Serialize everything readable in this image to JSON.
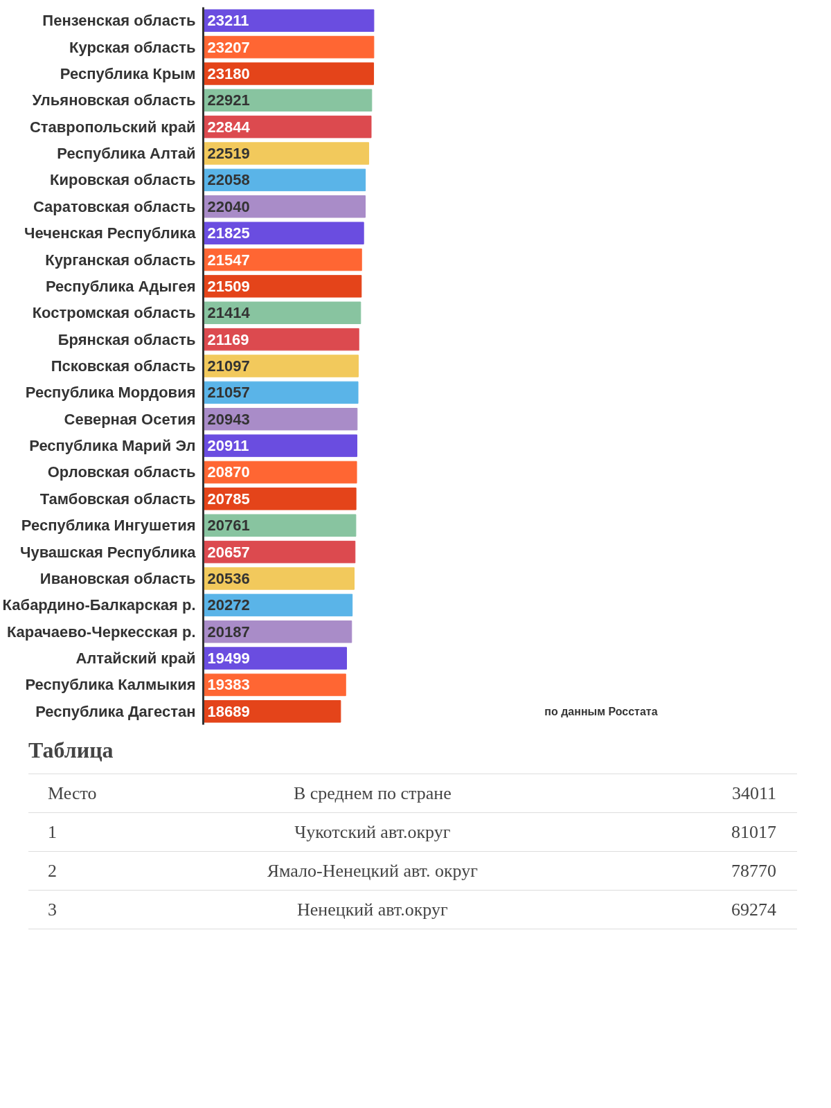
{
  "chart_data": {
    "type": "bar",
    "orientation": "horizontal",
    "data_labels": true,
    "tick_labels": "y",
    "categories": [
      "Пензенская область",
      "Курская область",
      "Республика Крым",
      "Ульяновская область",
      "Ставропольский край",
      "Республика Алтай",
      "Кировская область",
      "Саратовская область",
      "Чеченская Республика",
      "Курганская область",
      "Республика Адыгея",
      "Костромская область",
      "Брянская область",
      "Псковская область",
      "Республика Мордовия",
      "Северная Осетия",
      "Республика Марий Эл",
      "Орловская область",
      "Тамбовская область",
      "Республика Ингушетия",
      "Чувашская Республика",
      "Ивановская область",
      "Кабардино-Балкарская р.",
      "Карачаево-Черкесская р.",
      "Алтайский край",
      "Республика Калмыкия",
      "Республика Дагестан"
    ],
    "values": [
      23211,
      23207,
      23180,
      22921,
      22844,
      22519,
      22058,
      22040,
      21825,
      21547,
      21509,
      21414,
      21169,
      21097,
      21057,
      20943,
      20911,
      20870,
      20785,
      20761,
      20657,
      20536,
      20272,
      20187,
      19499,
      19383,
      18689
    ],
    "colors": [
      "#6a4de0",
      "#ff6633",
      "#e4441a",
      "#88c4a0",
      "#dc4a4f",
      "#f2c95c",
      "#5ab4e8",
      "#a98cc8",
      "#6a4de0",
      "#ff6633",
      "#e4441a",
      "#88c4a0",
      "#dc4a4f",
      "#f2c95c",
      "#5ab4e8",
      "#a98cc8",
      "#6a4de0",
      "#ff6633",
      "#e4441a",
      "#88c4a0",
      "#dc4a4f",
      "#f2c95c",
      "#5ab4e8",
      "#a98cc8",
      "#6a4de0",
      "#ff6633",
      "#e4441a"
    ],
    "annotations": [
      "по данным Росстата",
      "Таблица",
      "Место",
      "В среднем по стране",
      "34011",
      "1",
      "Чукотский авт.округ",
      "81017",
      "2",
      "Ямало-Ненецкий авт. округ",
      "78770",
      "3",
      "Ненецкий авт.округ",
      "69274"
    ]
  }
}
